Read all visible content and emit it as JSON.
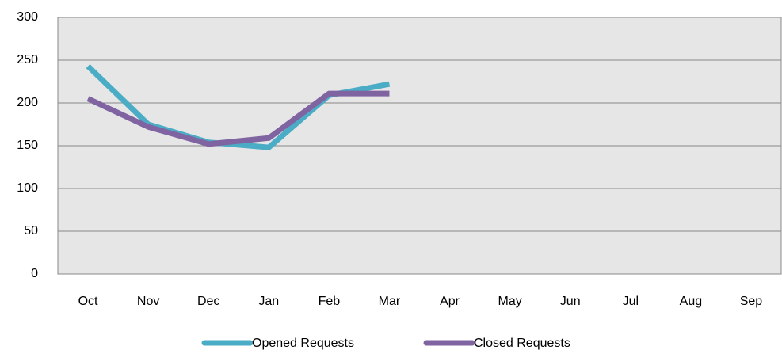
{
  "chart_data": {
    "type": "line",
    "categories": [
      "Oct",
      "Nov",
      "Dec",
      "Jan",
      "Feb",
      "Mar",
      "Apr",
      "May",
      "Jun",
      "Jul",
      "Aug",
      "Sep"
    ],
    "series": [
      {
        "name": "Opened Requests",
        "color": "#4bacc6",
        "values": [
          243,
          175,
          154,
          148,
          209,
          222,
          null,
          null,
          null,
          null,
          null,
          null
        ]
      },
      {
        "name": "Closed Requests",
        "color": "#8064a2",
        "values": [
          205,
          172,
          152,
          159,
          211,
          211,
          null,
          null,
          null,
          null,
          null,
          null
        ]
      }
    ],
    "ylim": [
      0,
      300
    ],
    "yticks": [
      0,
      50,
      100,
      150,
      200,
      250,
      300
    ],
    "grid": true,
    "legend": "bottom"
  }
}
